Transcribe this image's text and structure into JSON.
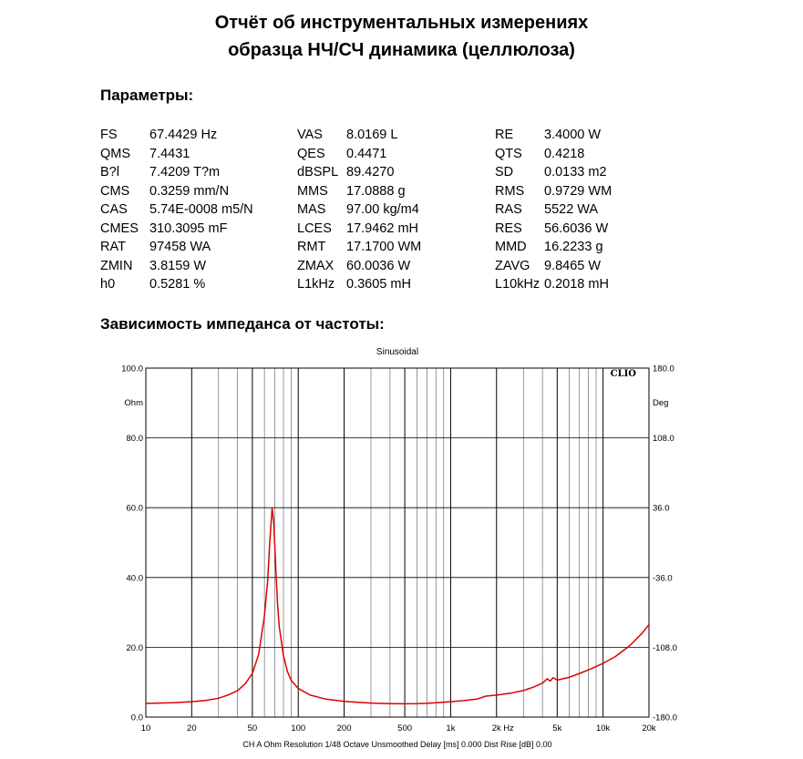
{
  "title": {
    "line1": "Отчёт об инструментальных измерениях",
    "line2": "образца НЧ/СЧ динамика (целлюлоза)"
  },
  "params_heading": "Параметры:",
  "params": [
    [
      {
        "name": "FS",
        "value": "67.4429 Hz"
      },
      {
        "name": "VAS",
        "value": "8.0169 L"
      },
      {
        "name": "RE",
        "value": "3.4000 W"
      }
    ],
    [
      {
        "name": "QMS",
        "value": "7.4431"
      },
      {
        "name": "QES",
        "value": "0.4471"
      },
      {
        "name": "QTS",
        "value": "0.4218"
      }
    ],
    [
      {
        "name": "B?l",
        "value": "7.4209 T?m"
      },
      {
        "name": "dBSPL",
        "value": "89.4270"
      },
      {
        "name": "SD",
        "value": "0.0133 m2"
      }
    ],
    [
      {
        "name": "CMS",
        "value": "0.3259 mm/N"
      },
      {
        "name": "MMS",
        "value": "17.0888 g"
      },
      {
        "name": "RMS",
        "value": "0.9729 WM"
      }
    ],
    [
      {
        "name": "CAS",
        "value": "5.74E-0008 m5/N"
      },
      {
        "name": "MAS",
        "value": "97.00 kg/m4"
      },
      {
        "name": "RAS",
        "value": "5522 WA"
      }
    ],
    [
      {
        "name": "CMES",
        "value": "310.3095 mF"
      },
      {
        "name": "LCES",
        "value": "17.9462 mH"
      },
      {
        "name": "RES",
        "value": "56.6036 W"
      }
    ],
    [
      {
        "name": "RAT",
        "value": "97458 WA"
      },
      {
        "name": "RMT",
        "value": "17.1700 WM"
      },
      {
        "name": "MMD",
        "value": "16.2233 g"
      }
    ],
    [
      {
        "name": "ZMIN",
        "value": "3.8159 W"
      },
      {
        "name": "ZMAX",
        "value": "60.0036 W"
      },
      {
        "name": "ZAVG",
        "value": "9.8465 W"
      }
    ],
    [
      {
        "name": "h0",
        "value": "0.5281 %"
      },
      {
        "name": "L1kHz",
        "value": "0.3605 mH"
      },
      {
        "name": "L10kHz",
        "value": "0.2018 mH"
      }
    ]
  ],
  "chart_heading": "Зависимость импеданса от частоты:",
  "chart_data": {
    "type": "line",
    "title": "Sinusoidal",
    "brand": "CLIO",
    "x_scale": "log",
    "xlim": [
      10,
      20000
    ],
    "ylim": [
      0,
      100
    ],
    "y2lim": [
      -180,
      180
    ],
    "ylabel": "Ohm",
    "y2label": "Deg",
    "x_ticks": [
      {
        "v": 10,
        "label": "10"
      },
      {
        "v": 20,
        "label": "20"
      },
      {
        "v": 50,
        "label": "50"
      },
      {
        "v": 100,
        "label": "100"
      },
      {
        "v": 200,
        "label": "200"
      },
      {
        "v": 500,
        "label": "500"
      },
      {
        "v": 1000,
        "label": "1k"
      },
      {
        "v": 2000,
        "label": "2k"
      },
      {
        "v": 5000,
        "label": "5k"
      },
      {
        "v": 10000,
        "label": "10k"
      },
      {
        "v": 20000,
        "label": "20k"
      }
    ],
    "x_unit": "Hz",
    "y_ticks": [
      "0.0",
      "20.0",
      "40.0",
      "60.0",
      "80.0",
      "100.0"
    ],
    "y2_ticks": [
      "-180.0",
      "-108.0",
      "-36.0",
      "36.0",
      "108.0",
      "180.0"
    ],
    "footer": "CH A   Ohm   Resolution 1/48 Octave   Unsmoothed   Delay [ms] 0.000   Dist Rise [dB] 0.00",
    "series": [
      {
        "name": "Impedance",
        "color": "#dd0000",
        "points": [
          [
            10,
            3.9
          ],
          [
            15,
            4.1
          ],
          [
            20,
            4.4
          ],
          [
            25,
            4.8
          ],
          [
            30,
            5.4
          ],
          [
            35,
            6.4
          ],
          [
            40,
            7.6
          ],
          [
            45,
            9.6
          ],
          [
            50,
            12.5
          ],
          [
            55,
            18
          ],
          [
            60,
            29
          ],
          [
            63,
            39
          ],
          [
            65,
            50
          ],
          [
            67.4,
            60.0
          ],
          [
            69,
            56
          ],
          [
            71,
            44
          ],
          [
            73,
            33
          ],
          [
            75,
            26
          ],
          [
            80,
            17.5
          ],
          [
            85,
            13
          ],
          [
            90,
            10.5
          ],
          [
            100,
            8.2
          ],
          [
            120,
            6.3
          ],
          [
            150,
            5.2
          ],
          [
            200,
            4.5
          ],
          [
            300,
            4.0
          ],
          [
            400,
            3.85
          ],
          [
            500,
            3.82
          ],
          [
            600,
            3.85
          ],
          [
            700,
            3.95
          ],
          [
            800,
            4.1
          ],
          [
            1000,
            4.4
          ],
          [
            1200,
            4.7
          ],
          [
            1500,
            5.2
          ],
          [
            1700,
            6.0
          ],
          [
            2000,
            6.3
          ],
          [
            2500,
            6.9
          ],
          [
            3000,
            7.6
          ],
          [
            3500,
            8.6
          ],
          [
            4000,
            9.7
          ],
          [
            4300,
            11.0
          ],
          [
            4500,
            10.3
          ],
          [
            4700,
            11.3
          ],
          [
            5000,
            10.6
          ],
          [
            6000,
            11.4
          ],
          [
            7000,
            12.5
          ],
          [
            8000,
            13.5
          ],
          [
            10000,
            15.4
          ],
          [
            12000,
            17.3
          ],
          [
            15000,
            20.5
          ],
          [
            18000,
            24.0
          ],
          [
            20000,
            26.5
          ]
        ]
      }
    ]
  }
}
